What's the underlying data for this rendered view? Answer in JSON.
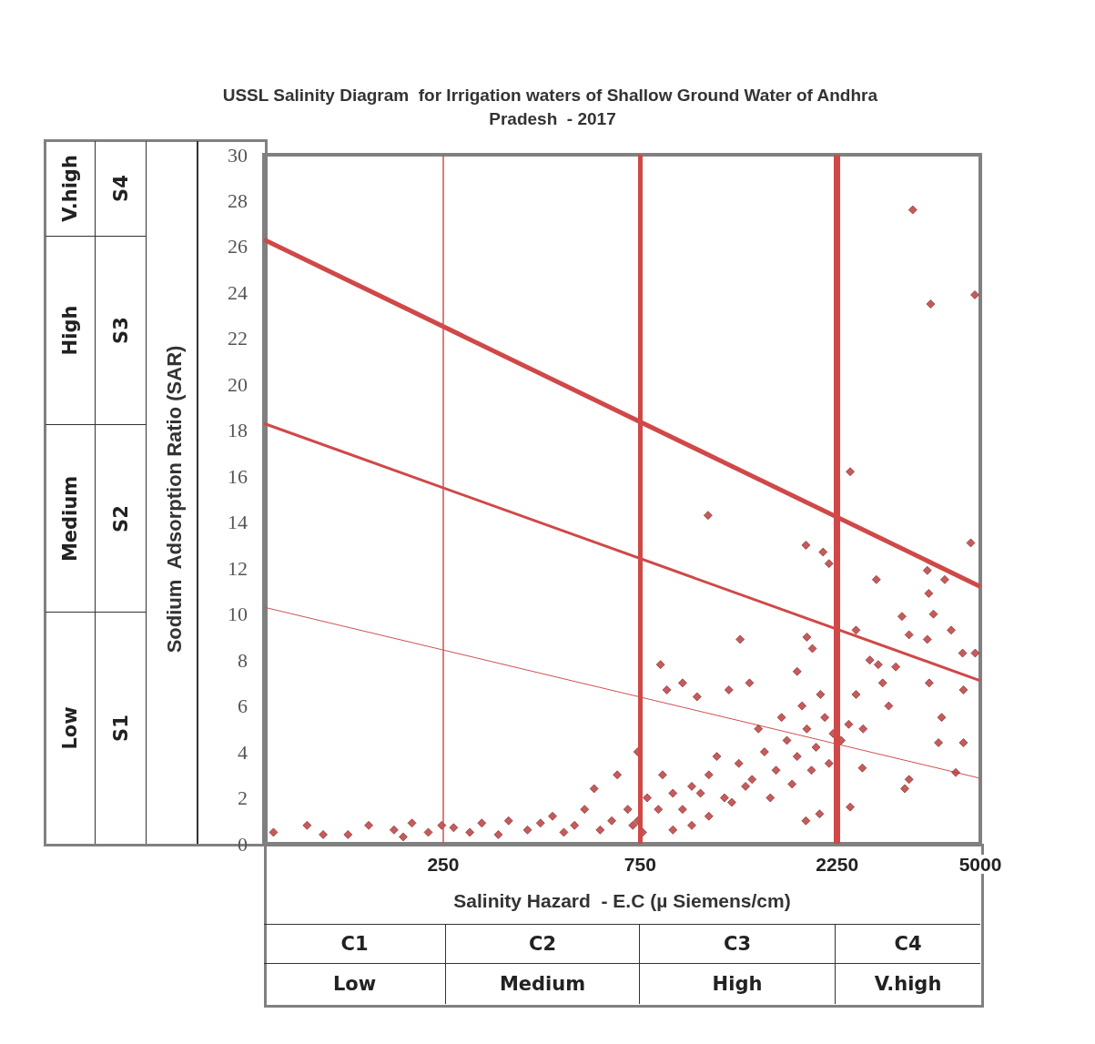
{
  "chart_data": {
    "type": "scatter",
    "title": "USSL Salinity Diagram  for Irrigation waters of Shallow Ground Water of Andhra Pradesh  - 2017",
    "xlabel": "Salinity Hazard  - E.C (µ Siemens/cm)",
    "ylabel": "Sodium  Adsorption Ratio (SAR)",
    "annotations": [
      "C1",
      "C2",
      "C3",
      "C4",
      "Low",
      "Medium",
      "High",
      "V.high",
      "S1",
      "S2",
      "S3",
      "S4",
      "Low",
      "Medium",
      "High",
      "V.high"
    ],
    "xlim": [
      92,
      5000
    ],
    "xticks": [
      250,
      750,
      2250,
      5000
    ],
    "ylim": [
      0,
      30
    ],
    "yticks": [
      0,
      2,
      4,
      6,
      8,
      10,
      12,
      14,
      16,
      18,
      20,
      22,
      24,
      26,
      28,
      30
    ],
    "log": "x",
    "grid": false,
    "marker": "diamond",
    "ref_lines": [
      {
        "axis": "x",
        "value": 250,
        "color": "#d05050"
      },
      {
        "axis": "x",
        "value": 750,
        "color": "#d04848"
      },
      {
        "axis": "x",
        "value": 2250,
        "color": "#d04848"
      }
    ],
    "series": [
      {
        "color": "#b83232",
        "x": [
          97,
          117,
          128,
          147,
          165,
          190,
          200,
          210,
          230,
          248,
          265,
          290,
          310,
          340,
          360,
          400,
          430,
          460,
          490,
          520,
          550,
          580,
          600,
          640,
          660,
          700,
          740,
          720,
          1095,
          2420,
          4740,
          1890,
          2080,
          2150,
          2800,
          3720,
          4100,
          3750,
          3230,
          3850,
          4250,
          3360,
          3720,
          1310,
          1900,
          1960,
          2500,
          4530,
          4860,
          840,
          870,
          950,
          1030,
          1230,
          1800,
          1380,
          2830,
          3120,
          4550,
          3760,
          4030,
          3960,
          4550,
          4360,
          3280,
          3360,
          2590,
          2420,
          1890,
          2040,
          740,
          830,
          900,
          1000,
          1100,
          1200,
          1300,
          1400,
          1500,
          1600,
          1700,
          1800,
          1900,
          2000,
          2100,
          2200,
          780,
          850,
          950,
          1050,
          1150,
          1250,
          1350,
          1450,
          1550,
          1650,
          1750,
          1850,
          1950,
          2050,
          2150,
          2300,
          2400,
          2600,
          2500,
          2700,
          2900,
          3000,
          900,
          1000,
          1100,
          760,
          3430,
          3790,
          4850
        ],
        "values": [
          0.5,
          0.8,
          0.4,
          0.4,
          0.8,
          0.6,
          0.3,
          0.9,
          0.5,
          0.8,
          0.7,
          0.5,
          0.9,
          0.4,
          1.0,
          0.6,
          0.9,
          1.2,
          0.5,
          0.8,
          1.5,
          2.4,
          0.6,
          1.0,
          3.0,
          1.5,
          4.0,
          0.8,
          14.3,
          16.2,
          13.1,
          13.0,
          12.7,
          12.2,
          11.5,
          11.9,
          11.5,
          10.9,
          9.9,
          10.0,
          9.3,
          9.1,
          8.9,
          8.9,
          9.0,
          8.5,
          9.3,
          8.3,
          8.3,
          7.8,
          6.7,
          7.0,
          6.4,
          6.7,
          7.5,
          7.0,
          7.8,
          7.7,
          6.7,
          7.0,
          5.5,
          4.4,
          4.4,
          3.1,
          2.4,
          2.8,
          3.3,
          1.6,
          1.0,
          1.3,
          1.0,
          1.5,
          2.2,
          2.5,
          3.0,
          2.0,
          3.5,
          2.8,
          4.0,
          3.2,
          4.5,
          3.8,
          5.0,
          4.2,
          5.5,
          4.8,
          2.0,
          3.0,
          1.5,
          2.2,
          3.8,
          1.8,
          2.5,
          5.0,
          2.0,
          5.5,
          2.6,
          6.0,
          3.2,
          6.5,
          3.5,
          4.5,
          5.2,
          5.0,
          6.5,
          8.0,
          7.0,
          6.0,
          0.6,
          0.8,
          1.2,
          0.5,
          27.6,
          23.5,
          23.9
        ]
      },
      {
        "type": "line",
        "marker": "none",
        "color": "#d04848",
        "x": [
          92,
          5000
        ],
        "values": [
          26.3,
          11.2
        ]
      },
      {
        "type": "line",
        "marker": "none",
        "color": "#d04848",
        "x": [
          92,
          5000
        ],
        "values": [
          18.3,
          7.1
        ]
      },
      {
        "type": "line",
        "marker": "none",
        "color": "#d05050",
        "x": [
          92,
          5000
        ],
        "values": [
          10.3,
          2.85
        ]
      }
    ]
  }
}
